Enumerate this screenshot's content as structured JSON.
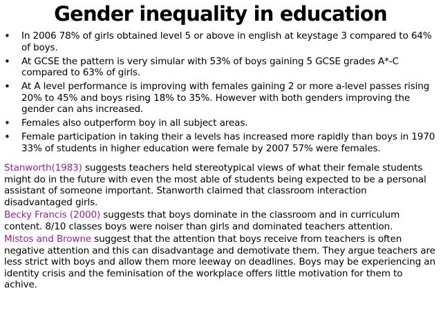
{
  "slide": {
    "title": "Gender inequality in education",
    "bullet_symbol": "•",
    "bullets": [
      "In 2006 78% of girls obtained level 5 or above in english at keystage 3 compared to 64% of boys.",
      "At GCSE the pattern is very simular with 53% of boys gaining 5 GCSE grades A*-C compared to 63% of girls.",
      "At A level performance is improving with females gaining 2 or more a-level passes rising 20% to 45% and boys rising 18% to 35%. However with both genders improving the gender can ahs increased.",
      "Females also outperform boy in all subject areas.",
      "Female participation in taking their a levels has increased more rapidly than boys in 1970 33% of students in higher education were female by 2007 57%  were females."
    ],
    "paragraphs": [
      {
        "source": "Stanworth(1983)",
        "text": " suggests teachers held stereotypical views of what their female students might do in the future with even the most able of students being expected to be a personal assistant of someone important. Stanworth claimed that classroom interaction disadvantaged girls."
      },
      {
        "source": "Becky Francis (2000)",
        "text": " suggests that boys dominate in the classroom and in curriculum content. 8/10 classes boys were noiser than girls and dominated teachers attention."
      },
      {
        "source": "Mistos and Browne",
        "text": " suggest that the attention that boys receive from teachers is often negative attention and this can disadvantage and demotivate them. They argue teachers are less strict with boys and allow them more leeway on deadlines. Boys may be experiencing an identity crisis and the feminisation of the workplace offers little motivation for them to achive."
      }
    ],
    "colors": {
      "source_text": "#9b1f9b",
      "body_text": "#000000",
      "background": "#ffffff"
    }
  }
}
